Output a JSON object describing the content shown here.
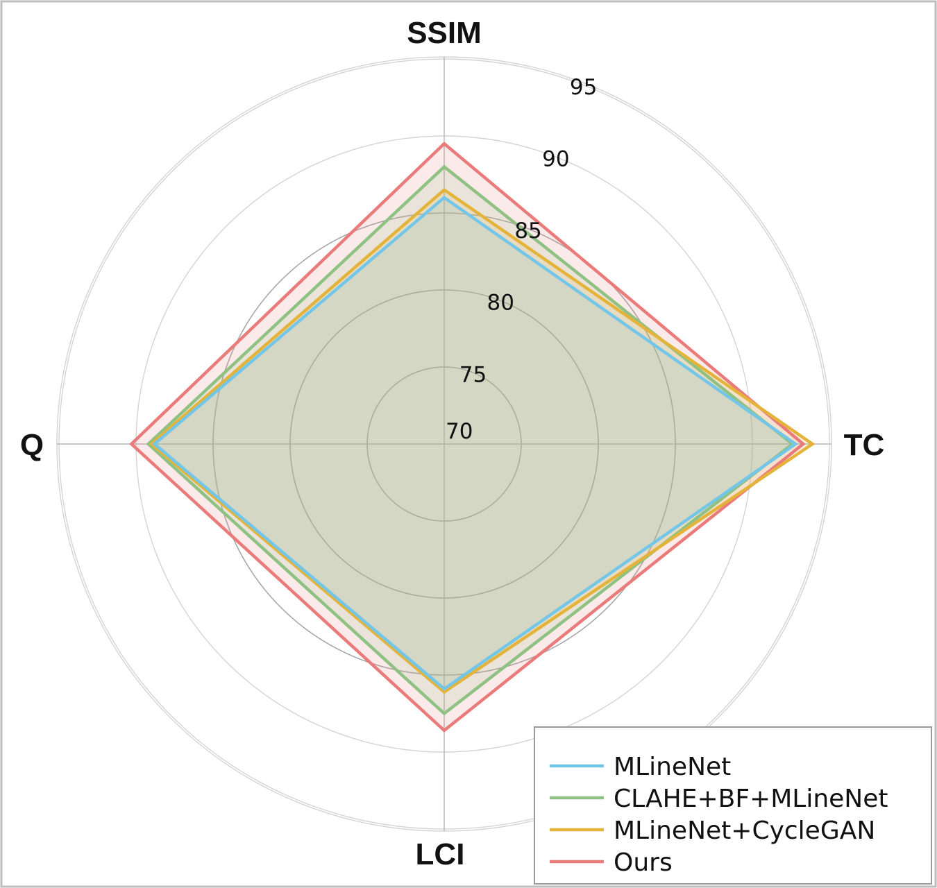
{
  "chart_data": {
    "type": "radar",
    "title": "",
    "axes": [
      "SSIM",
      "TC",
      "LCI",
      "Q"
    ],
    "radial_ticks": [
      "70",
      "75",
      "80",
      "85",
      "90",
      "95"
    ],
    "r_range": [
      70,
      95
    ],
    "grid": true,
    "legend_position": "bottom-right",
    "series": [
      {
        "name": "MLineNet",
        "color": "#74c6e8",
        "values": [
          86.0,
          92.8,
          85.9,
          88.8
        ]
      },
      {
        "name": "CLAHE+BF+MLineNet",
        "color": "#8fc183",
        "values": [
          88.0,
          92.6,
          87.5,
          89.2
        ]
      },
      {
        "name": "MLineNet+CycleGAN",
        "color": "#e4b43a",
        "values": [
          86.5,
          93.9,
          86.1,
          89.0
        ]
      },
      {
        "name": "Ours",
        "color": "#e97b7b",
        "values": [
          89.5,
          93.3,
          88.6,
          90.3
        ]
      }
    ]
  }
}
